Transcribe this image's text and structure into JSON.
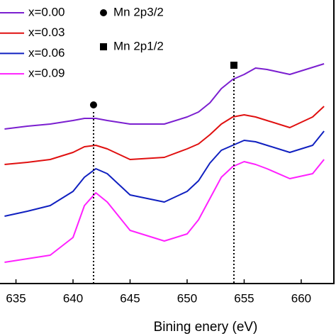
{
  "chart_data": {
    "type": "line",
    "xlabel": "Bining enery (eV)",
    "x": [
      634,
      636,
      638,
      640,
      641,
      642,
      643,
      645,
      648,
      650,
      651,
      652,
      653,
      654,
      655,
      656,
      657,
      659,
      661,
      662
    ],
    "series": [
      {
        "name": "x=0.00",
        "color": "#7b1fd0",
        "values": [
          54.5,
          55.5,
          56.25,
          57.5,
          58.25,
          58.25,
          57.5,
          56.25,
          56.25,
          58.75,
          60.5,
          63.75,
          68.75,
          72,
          73.75,
          76,
          75.5,
          73.75,
          76.25,
          77.5
        ]
      },
      {
        "name": "x=0.03",
        "color": "#e01010",
        "values": [
          42,
          42.75,
          43.75,
          46.25,
          48.25,
          48.75,
          47.5,
          43.75,
          44.5,
          47.5,
          49.25,
          52.5,
          56.25,
          58.75,
          59.5,
          58.75,
          57.5,
          55,
          58.75,
          62.5
        ]
      },
      {
        "name": "x=0.06",
        "color": "#1020c0",
        "values": [
          23.75,
          25.5,
          27.5,
          32.5,
          37.5,
          40.5,
          38.75,
          31.25,
          28.75,
          32.5,
          36.25,
          42.5,
          47,
          48.75,
          50.5,
          50,
          48.75,
          46.25,
          48.75,
          53.75
        ]
      },
      {
        "name": "x=0.09",
        "color": "#ff20ff",
        "values": [
          7.5,
          8.75,
          10,
          16.25,
          27.5,
          32,
          28.75,
          18.75,
          15,
          17.5,
          22.5,
          30,
          37.5,
          41.25,
          43,
          42,
          40.5,
          37,
          38.75,
          43.75
        ]
      }
    ],
    "markers": [
      {
        "label": "Mn 2p3/2",
        "shape": "circle",
        "x": 641.8,
        "y": 63
      },
      {
        "label": "Mn 2p1/2",
        "shape": "square",
        "x": 654.1,
        "y": 77
      }
    ],
    "xlim": [
      633.6,
      662.8
    ],
    "xticks": [
      635,
      640,
      645,
      650,
      655,
      660
    ],
    "ylim": [
      0,
      100
    ],
    "legend": "upper left"
  }
}
